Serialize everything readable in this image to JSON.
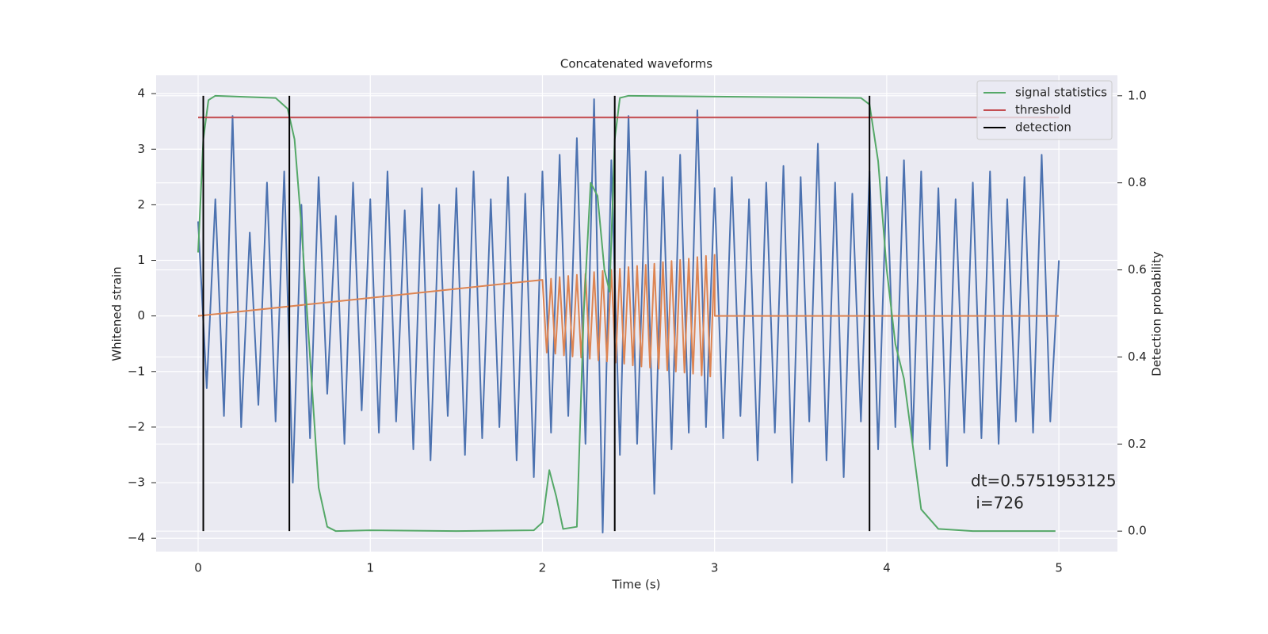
{
  "chart_data": {
    "type": "line",
    "title": "Concatenated waveforms",
    "xlabel": "Time (s)",
    "ylabel": "Whitened strain",
    "y2label": "Detection probability",
    "xlim": [
      -0.244,
      5.34
    ],
    "xticks": [
      0,
      1,
      2,
      3,
      4,
      5
    ],
    "ylim": [
      -4.24,
      4.33
    ],
    "yticks": [
      {
        "value": -4,
        "label": "−4"
      },
      {
        "value": -3,
        "label": "−3"
      },
      {
        "value": -2,
        "label": "−2"
      },
      {
        "value": -1,
        "label": "−1"
      },
      0,
      1,
      2,
      3,
      4
    ],
    "y2lim": [
      -0.047,
      1.047
    ],
    "y2ticks": [
      {
        "value": 0,
        "label": "0.0"
      },
      {
        "value": 0.2,
        "label": "0.2"
      },
      {
        "value": 0.4,
        "label": "0.4"
      },
      {
        "value": 0.6,
        "label": "0.6"
      },
      {
        "value": 0.8,
        "label": "0.8"
      },
      {
        "value": 1,
        "label": "1.0"
      }
    ],
    "grid": true,
    "legend": "upper right",
    "annotation": [
      "dt=0.5751953125",
      " i=726"
    ],
    "series": [
      {
        "color": "#4c72b0",
        "x": [
          0,
          0.05,
          0.1,
          0.15,
          0.2,
          0.25,
          0.3,
          0.35,
          0.4,
          0.45,
          0.5,
          0.55,
          0.6,
          0.65,
          0.7,
          0.75,
          0.8,
          0.85,
          0.9,
          0.95,
          1,
          1.05,
          1.1,
          1.15,
          1.2,
          1.25,
          1.3,
          1.35,
          1.4,
          1.45,
          1.5,
          1.55,
          1.6,
          1.65,
          1.7,
          1.75,
          1.8,
          1.85,
          1.9,
          1.95,
          2,
          2.05,
          2.1,
          2.15,
          2.2,
          2.25,
          2.3,
          2.35,
          2.4,
          2.45,
          2.5,
          2.55,
          2.6,
          2.65,
          2.7,
          2.75,
          2.8,
          2.85,
          2.9,
          2.95,
          3,
          3.05,
          3.1,
          3.15,
          3.2,
          3.25,
          3.3,
          3.35,
          3.4,
          3.45,
          3.5,
          3.55,
          3.6,
          3.65,
          3.7,
          3.75,
          3.8,
          3.85,
          3.9,
          3.95,
          4,
          4.05,
          4.1,
          4.15,
          4.2,
          4.25,
          4.3,
          4.35,
          4.4,
          4.45,
          4.5,
          4.55,
          4.6,
          4.65,
          4.7,
          4.75,
          4.8,
          4.85,
          4.9,
          4.95,
          5
        ],
        "values": [
          1.7,
          -1.3,
          2.1,
          -1.8,
          3.6,
          -2.0,
          1.5,
          -1.6,
          2.4,
          -1.9,
          2.6,
          -3.0,
          2.0,
          -2.2,
          2.5,
          -1.4,
          1.8,
          -2.3,
          2.4,
          -1.7,
          2.1,
          -2.1,
          2.6,
          -1.9,
          1.9,
          -2.4,
          2.3,
          -2.6,
          2.0,
          -1.8,
          2.3,
          -2.5,
          2.6,
          -2.2,
          2.1,
          -2.0,
          2.5,
          -2.6,
          2.2,
          -2.9,
          2.6,
          -2.1,
          2.9,
          -1.8,
          3.2,
          -2.3,
          3.9,
          -3.9,
          2.8,
          -2.5,
          3.6,
          -2.3,
          2.6,
          -3.2,
          2.5,
          -2.4,
          2.9,
          -2.1,
          3.7,
          -2.0,
          2.3,
          -2.2,
          2.5,
          -1.8,
          2.1,
          -2.6,
          2.4,
          -2.1,
          2.7,
          -3.0,
          2.5,
          -1.9,
          3.1,
          -2.6,
          2.4,
          -2.9,
          2.2,
          -1.9,
          2.6,
          -2.4,
          2.5,
          -2.0,
          2.8,
          -2.3,
          2.6,
          -2.4,
          2.3,
          -2.7,
          2.1,
          -2.1,
          2.4,
          -2.2,
          2.6,
          -2.3,
          2.1,
          -1.9,
          2.5,
          -2.1,
          2.9,
          -1.9,
          1.0
        ]
      },
      {
        "color": "#dd8452",
        "x": [
          0,
          2,
          2.025,
          2.05,
          2.075,
          2.1,
          2.125,
          2.15,
          2.175,
          2.2,
          2.225,
          2.25,
          2.275,
          2.3,
          2.325,
          2.35,
          2.375,
          2.4,
          2.425,
          2.45,
          2.475,
          2.5,
          2.525,
          2.55,
          2.575,
          2.6,
          2.625,
          2.65,
          2.675,
          2.7,
          2.725,
          2.75,
          2.775,
          2.8,
          2.825,
          2.85,
          2.875,
          2.9,
          2.925,
          2.95,
          2.975,
          3,
          3.001,
          5
        ],
        "values": [
          0,
          0.65,
          -0.66,
          0.67,
          -0.68,
          0.7,
          -0.71,
          0.72,
          -0.73,
          0.74,
          -0.75,
          0.76,
          -0.77,
          0.79,
          -0.8,
          0.81,
          -0.82,
          0.83,
          -0.84,
          0.85,
          -0.86,
          0.88,
          -0.89,
          0.9,
          -0.91,
          0.92,
          -0.93,
          0.94,
          -0.95,
          0.97,
          -0.98,
          0.99,
          -1.0,
          1.01,
          -1.02,
          1.03,
          -1.04,
          1.06,
          -1.07,
          1.08,
          -1.09,
          1.1,
          0,
          0
        ]
      },
      {
        "name": "signal statistics",
        "color": "#55a868",
        "axis": "y2",
        "x": [
          0,
          0.03,
          0.06,
          0.1,
          0.45,
          0.52,
          0.56,
          0.6,
          0.65,
          0.7,
          0.75,
          0.8,
          1.0,
          1.5,
          1.95,
          2.0,
          2.04,
          2.08,
          2.12,
          2.2,
          2.24,
          2.28,
          2.32,
          2.36,
          2.39,
          2.42,
          2.45,
          2.5,
          3.85,
          3.9,
          3.95,
          4.0,
          4.05,
          4.1,
          4.15,
          4.2,
          4.3,
          4.5,
          4.98
        ],
        "values": [
          0.64,
          0.9,
          0.99,
          1.0,
          0.995,
          0.97,
          0.9,
          0.7,
          0.4,
          0.1,
          0.01,
          0.0,
          0.002,
          0.0,
          0.002,
          0.02,
          0.14,
          0.08,
          0.005,
          0.01,
          0.5,
          0.8,
          0.77,
          0.6,
          0.55,
          0.9,
          0.995,
          1.0,
          0.995,
          0.98,
          0.85,
          0.6,
          0.43,
          0.35,
          0.2,
          0.05,
          0.005,
          0.0,
          0.0
        ]
      },
      {
        "name": "threshold",
        "color": "#c44e52",
        "axis": "y2",
        "x": [
          0,
          5
        ],
        "values": [
          0.95,
          0.95
        ]
      },
      {
        "name": "detection",
        "color": "#000000",
        "axis": "y2",
        "kind": "vline",
        "ymin": 0,
        "ymax": 1,
        "x": [
          0.03,
          0.53,
          2.42,
          3.9
        ]
      }
    ]
  }
}
